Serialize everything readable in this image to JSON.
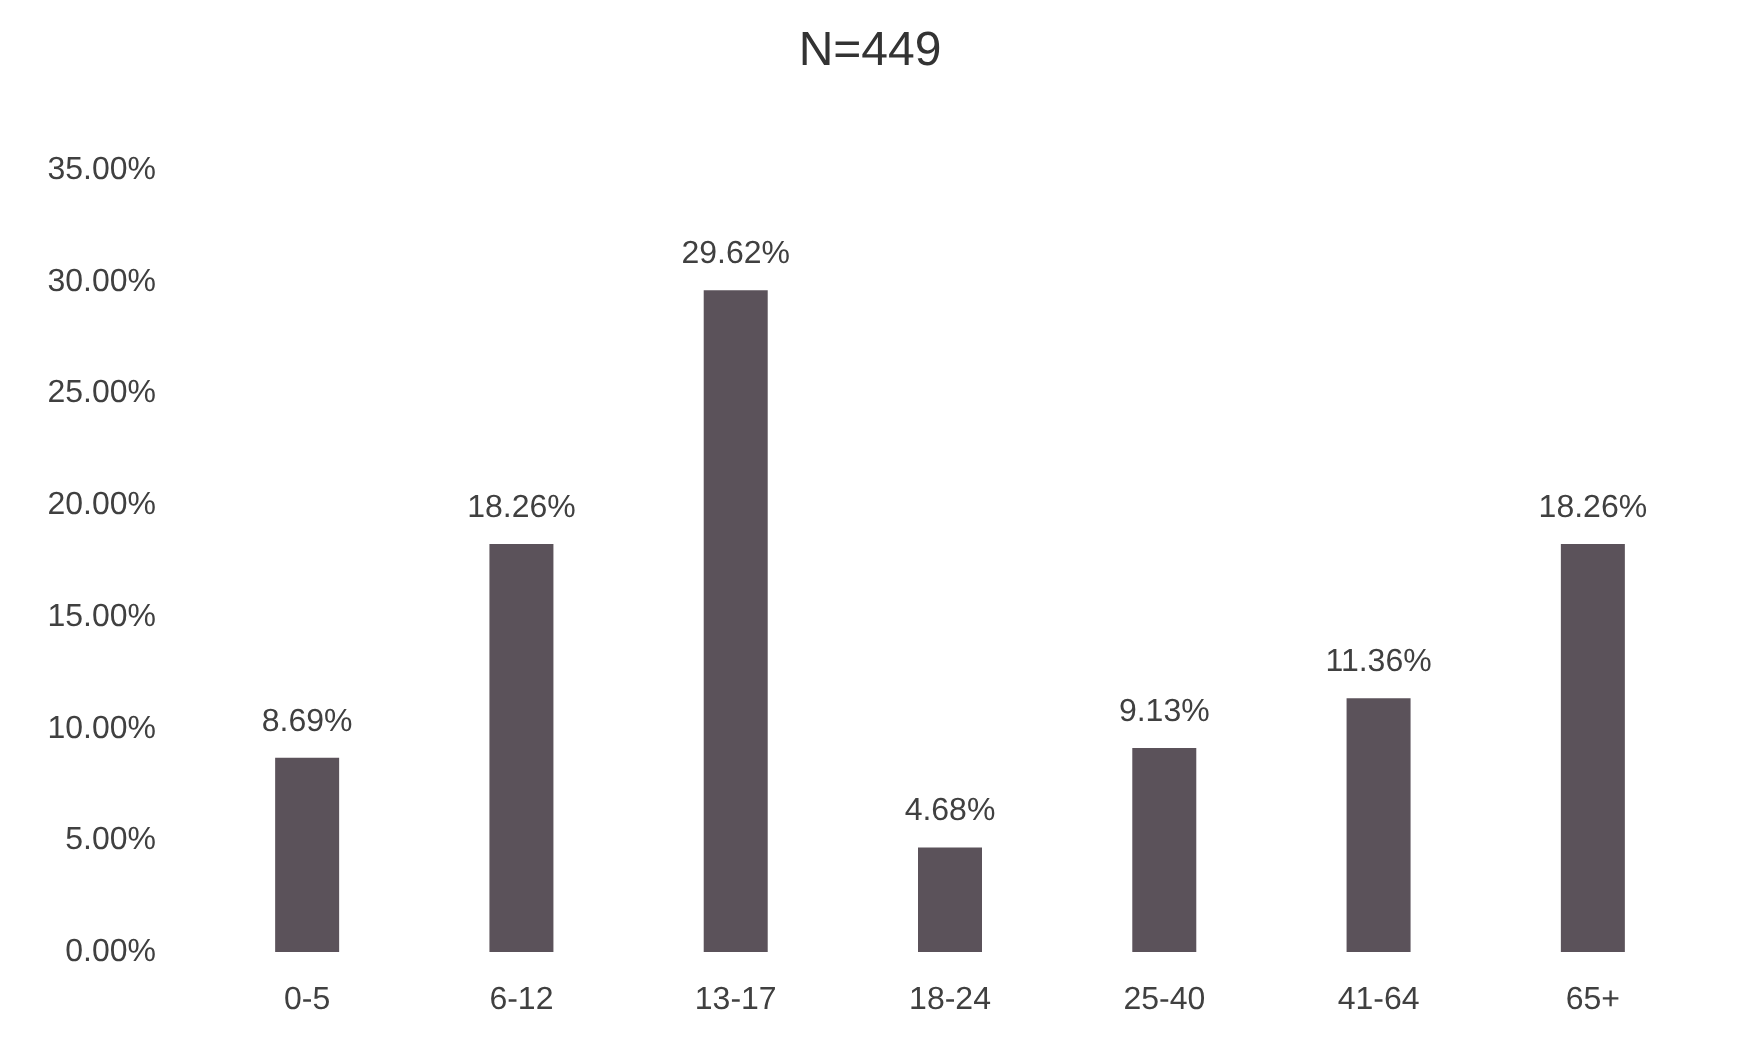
{
  "chart_data": {
    "type": "bar",
    "title": "N=449",
    "categories": [
      "0-5",
      "6-12",
      "13-17",
      "18-24",
      "25-40",
      "41-64",
      "65+"
    ],
    "values": [
      8.69,
      18.26,
      29.62,
      4.68,
      9.13,
      11.36,
      18.26
    ],
    "value_labels": [
      "8.69%",
      "18.26%",
      "29.62%",
      "4.68%",
      "9.13%",
      "11.36%",
      "18.26%"
    ],
    "color": "#5b525a",
    "ylim": [
      0,
      35
    ],
    "yticks": [
      {
        "value": 0,
        "label": "0.00%"
      },
      {
        "value": 5,
        "label": "5.00%"
      },
      {
        "value": 10,
        "label": "10.00%"
      },
      {
        "value": 15,
        "label": "15.00%"
      },
      {
        "value": 20,
        "label": "20.00%"
      },
      {
        "value": 25,
        "label": "25.00%"
      },
      {
        "value": 30,
        "label": "30.00%"
      },
      {
        "value": 35,
        "label": "35.00%"
      }
    ],
    "grid": false
  }
}
